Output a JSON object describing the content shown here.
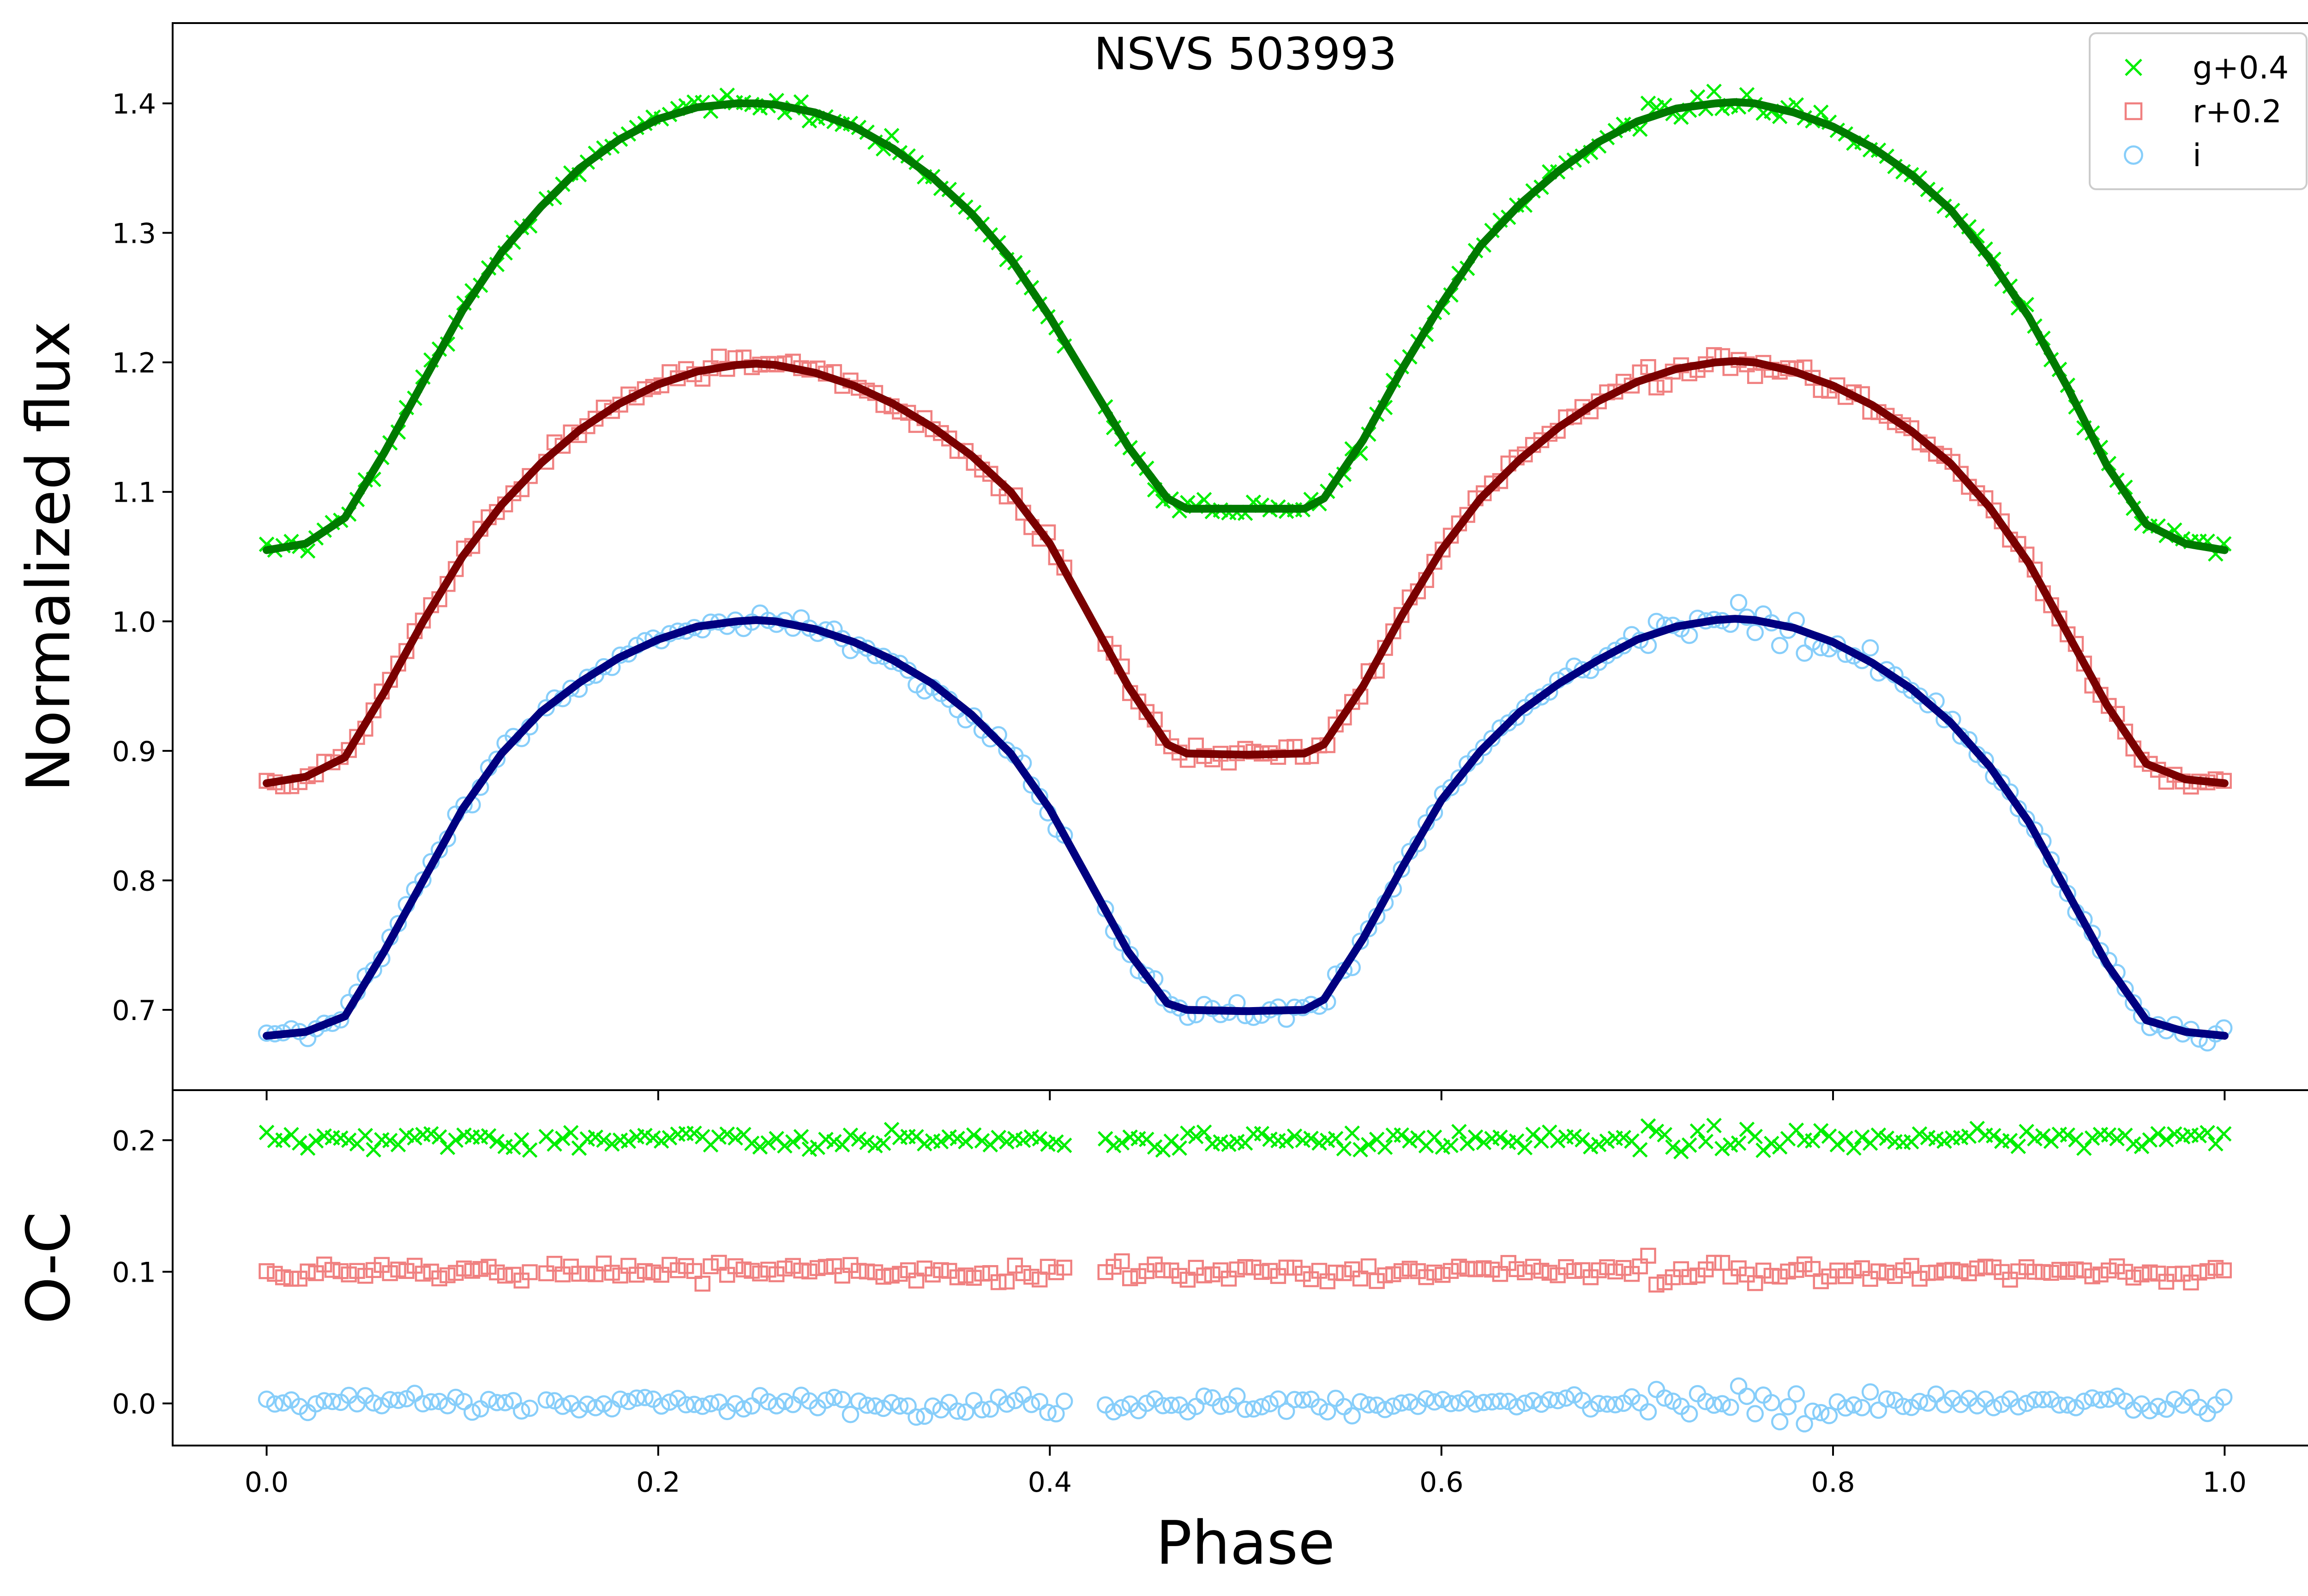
{
  "chart_data": [
    {
      "panel": "top",
      "type": "scatter",
      "title": "NSVS 503993",
      "xlabel": "",
      "ylabel": "Normalized flux",
      "xlim": [
        -0.048,
        1.048
      ],
      "ylim": [
        0.638,
        1.462
      ],
      "xticks": [
        0.0,
        0.2,
        0.4,
        0.6,
        0.8,
        1.0
      ],
      "xtick_labels": [
        "0.0",
        "0.2",
        "0.4",
        "0.6",
        "0.8",
        "1.0"
      ],
      "xtick_labels_shown": false,
      "yticks": [
        0.7,
        0.8,
        0.9,
        1.0,
        1.1,
        1.2,
        1.3,
        1.4
      ],
      "ytick_labels": [
        "0.7",
        "0.8",
        "0.9",
        "1.0",
        "1.1",
        "1.2",
        "1.3",
        "1.4"
      ],
      "legend": {
        "position": "top-right",
        "entries": [
          {
            "label": "g+0.4",
            "marker": "x",
            "color": "#00ee00"
          },
          {
            "label": "r+0.2",
            "marker": "square",
            "color": "#f08080"
          },
          {
            "label": "i",
            "marker": "circle",
            "color": "#87cefa"
          }
        ]
      },
      "model_curves": [
        {
          "name": "g+0.4 model",
          "color": "#007a00",
          "x": [
            0.0,
            0.02,
            0.04,
            0.06,
            0.08,
            0.1,
            0.12,
            0.14,
            0.16,
            0.18,
            0.2,
            0.22,
            0.24,
            0.25,
            0.26,
            0.28,
            0.3,
            0.32,
            0.34,
            0.36,
            0.38,
            0.4,
            0.42,
            0.44,
            0.46,
            0.47,
            0.5,
            0.53,
            0.54,
            0.56,
            0.58,
            0.6,
            0.62,
            0.64,
            0.66,
            0.68,
            0.7,
            0.72,
            0.74,
            0.75,
            0.76,
            0.78,
            0.8,
            0.82,
            0.84,
            0.86,
            0.88,
            0.9,
            0.92,
            0.94,
            0.96,
            0.98,
            1.0
          ],
          "y": [
            1.055,
            1.06,
            1.08,
            1.13,
            1.185,
            1.24,
            1.285,
            1.32,
            1.35,
            1.372,
            1.388,
            1.397,
            1.4,
            1.4,
            1.399,
            1.393,
            1.382,
            1.365,
            1.343,
            1.315,
            1.28,
            1.235,
            1.185,
            1.135,
            1.095,
            1.087,
            1.087,
            1.087,
            1.095,
            1.14,
            1.195,
            1.245,
            1.29,
            1.322,
            1.348,
            1.37,
            1.386,
            1.396,
            1.4,
            1.401,
            1.4,
            1.393,
            1.382,
            1.366,
            1.345,
            1.318,
            1.28,
            1.235,
            1.18,
            1.12,
            1.075,
            1.06,
            1.055
          ]
        },
        {
          "name": "r+0.2 model",
          "color": "#7a0000",
          "x": [
            0.0,
            0.02,
            0.04,
            0.06,
            0.08,
            0.1,
            0.12,
            0.14,
            0.16,
            0.18,
            0.2,
            0.22,
            0.24,
            0.25,
            0.26,
            0.28,
            0.3,
            0.32,
            0.34,
            0.36,
            0.38,
            0.4,
            0.42,
            0.44,
            0.46,
            0.47,
            0.5,
            0.53,
            0.54,
            0.56,
            0.58,
            0.6,
            0.62,
            0.64,
            0.66,
            0.68,
            0.7,
            0.72,
            0.74,
            0.75,
            0.76,
            0.78,
            0.8,
            0.82,
            0.84,
            0.86,
            0.88,
            0.9,
            0.92,
            0.94,
            0.96,
            0.98,
            1.0
          ],
          "y": [
            0.875,
            0.88,
            0.895,
            0.945,
            1.0,
            1.05,
            1.09,
            1.122,
            1.148,
            1.168,
            1.183,
            1.193,
            1.198,
            1.199,
            1.198,
            1.192,
            1.182,
            1.168,
            1.15,
            1.128,
            1.1,
            1.06,
            1.005,
            0.95,
            0.905,
            0.898,
            0.897,
            0.898,
            0.905,
            0.95,
            1.005,
            1.055,
            1.095,
            1.125,
            1.15,
            1.17,
            1.185,
            1.195,
            1.2,
            1.201,
            1.2,
            1.193,
            1.182,
            1.167,
            1.147,
            1.122,
            1.088,
            1.045,
            0.99,
            0.935,
            0.89,
            0.878,
            0.875
          ]
        },
        {
          "name": "i model",
          "color": "#000080",
          "x": [
            0.0,
            0.02,
            0.04,
            0.06,
            0.08,
            0.1,
            0.12,
            0.14,
            0.16,
            0.18,
            0.2,
            0.22,
            0.24,
            0.25,
            0.26,
            0.28,
            0.3,
            0.32,
            0.34,
            0.36,
            0.38,
            0.4,
            0.42,
            0.44,
            0.46,
            0.47,
            0.5,
            0.53,
            0.54,
            0.56,
            0.58,
            0.6,
            0.62,
            0.64,
            0.66,
            0.68,
            0.7,
            0.72,
            0.74,
            0.75,
            0.76,
            0.78,
            0.8,
            0.82,
            0.84,
            0.86,
            0.88,
            0.9,
            0.92,
            0.94,
            0.96,
            0.98,
            1.0
          ],
          "y": [
            0.68,
            0.683,
            0.695,
            0.745,
            0.8,
            0.855,
            0.898,
            0.93,
            0.953,
            0.972,
            0.986,
            0.996,
            1.0,
            1.001,
            1.0,
            0.994,
            0.984,
            0.97,
            0.952,
            0.928,
            0.898,
            0.855,
            0.8,
            0.745,
            0.705,
            0.7,
            0.699,
            0.7,
            0.708,
            0.755,
            0.81,
            0.862,
            0.9,
            0.93,
            0.952,
            0.97,
            0.986,
            0.996,
            1.001,
            1.002,
            1.001,
            0.995,
            0.984,
            0.968,
            0.948,
            0.922,
            0.888,
            0.845,
            0.79,
            0.735,
            0.692,
            0.683,
            0.68
          ]
        }
      ]
    },
    {
      "panel": "bottom",
      "type": "scatter",
      "xlabel": "Phase",
      "ylabel": "O-C",
      "xlim": [
        -0.048,
        1.048
      ],
      "ylim": [
        -0.032,
        0.238
      ],
      "xticks": [
        0.0,
        0.2,
        0.4,
        0.6,
        0.8,
        1.0
      ],
      "xtick_labels": [
        "0.0",
        "0.2",
        "0.4",
        "0.6",
        "0.8",
        "1.0"
      ],
      "yticks": [
        0.0,
        0.1,
        0.2
      ],
      "ytick_labels": [
        "0.0",
        "0.1",
        "0.2"
      ],
      "series": [
        {
          "name": "g+0.4",
          "marker": "x",
          "color": "#00ee00",
          "offset": 0.2
        },
        {
          "name": "r+0.2",
          "marker": "square",
          "color": "#f08080",
          "offset": 0.1
        },
        {
          "name": "i",
          "marker": "circle",
          "color": "#87cefa",
          "offset": 0.0
        }
      ],
      "gap_ranges": [
        [
          0.135,
          0.14
        ],
        [
          0.41,
          0.425
        ]
      ]
    }
  ]
}
